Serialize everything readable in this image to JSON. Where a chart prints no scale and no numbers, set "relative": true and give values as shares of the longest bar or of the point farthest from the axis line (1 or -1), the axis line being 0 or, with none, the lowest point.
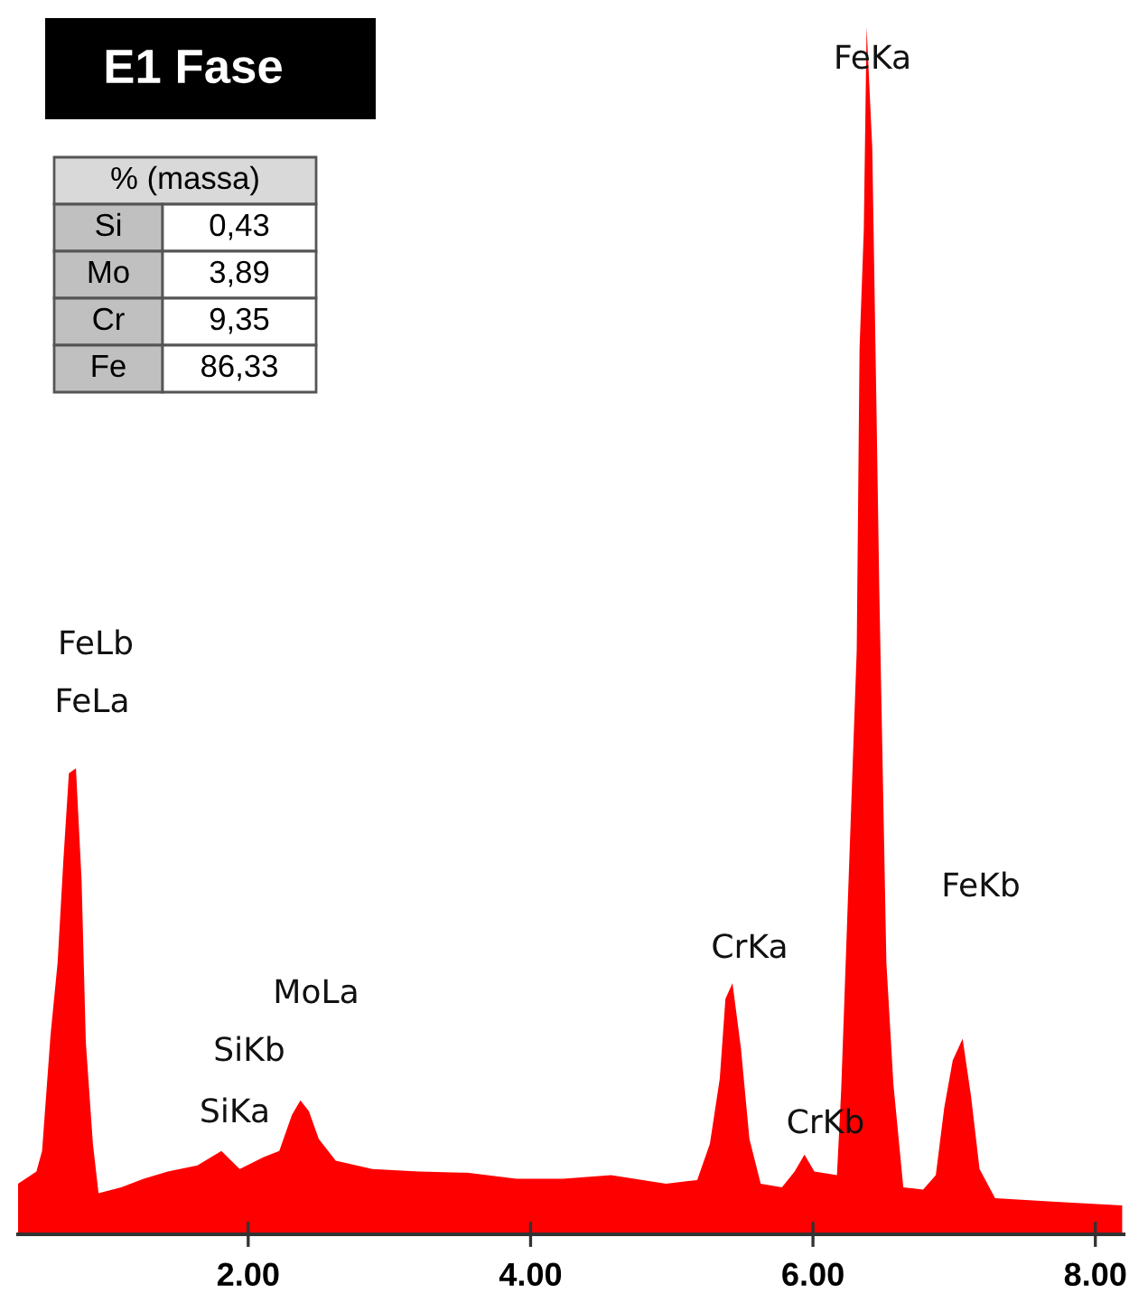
{
  "chart_data": {
    "type": "area",
    "relative": true,
    "title": "E1 Fase",
    "x": [
      0.37,
      0.5,
      0.54,
      0.6,
      0.65,
      0.69,
      0.73,
      0.78,
      0.82,
      0.85,
      0.9,
      0.94,
      1.1,
      1.26,
      1.43,
      1.64,
      1.81,
      1.94,
      2.11,
      2.22,
      2.31,
      2.37,
      2.43,
      2.5,
      2.62,
      2.88,
      3.21,
      3.55,
      3.9,
      4.23,
      4.57,
      4.96,
      5.18,
      5.27,
      5.34,
      5.38,
      5.43,
      5.49,
      5.55,
      5.63,
      5.78,
      5.87,
      5.94,
      6.01,
      6.17,
      6.2,
      6.31,
      6.33,
      6.36,
      6.38,
      6.42,
      6.45,
      6.47,
      6.52,
      6.57,
      6.64,
      6.78,
      6.87,
      6.93,
      6.99,
      7.06,
      7.12,
      7.18,
      7.29,
      7.72,
      8.19
    ],
    "series": [
      {
        "color": "#ff0000",
        "values": [
          0.042,
          0.052,
          0.069,
          0.165,
          0.225,
          0.308,
          0.382,
          0.386,
          0.293,
          0.159,
          0.075,
          0.034,
          0.039,
          0.046,
          0.052,
          0.057,
          0.069,
          0.054,
          0.064,
          0.069,
          0.099,
          0.111,
          0.102,
          0.079,
          0.061,
          0.054,
          0.052,
          0.051,
          0.046,
          0.046,
          0.049,
          0.042,
          0.045,
          0.075,
          0.129,
          0.195,
          0.208,
          0.154,
          0.079,
          0.042,
          0.039,
          0.052,
          0.066,
          0.052,
          0.049,
          0.12,
          0.484,
          0.734,
          0.832,
          1.0,
          0.9,
          0.683,
          0.533,
          0.225,
          0.124,
          0.039,
          0.037,
          0.049,
          0.105,
          0.144,
          0.162,
          0.114,
          0.054,
          0.03,
          0.027,
          0.024
        ]
      }
    ],
    "xlim": [
      0.37,
      8.2
    ],
    "xticks": [
      {
        "value": 2,
        "label": "2.00"
      },
      {
        "value": 4,
        "label": "4.00"
      },
      {
        "value": 6,
        "label": "6.00"
      },
      {
        "value": 8,
        "label": "8.00"
      }
    ],
    "grid": false,
    "legend": false,
    "annotations": [
      "FeKa",
      "FeLb",
      "FeLa",
      "MoLa",
      "SiKb",
      "SiKa",
      "CrKa",
      "CrKb",
      "FeKb",
      "% (massa)",
      "Si",
      "0,43",
      "Mo",
      "3,89",
      "Cr",
      "9,35",
      "Fe",
      "86,33"
    ]
  }
}
